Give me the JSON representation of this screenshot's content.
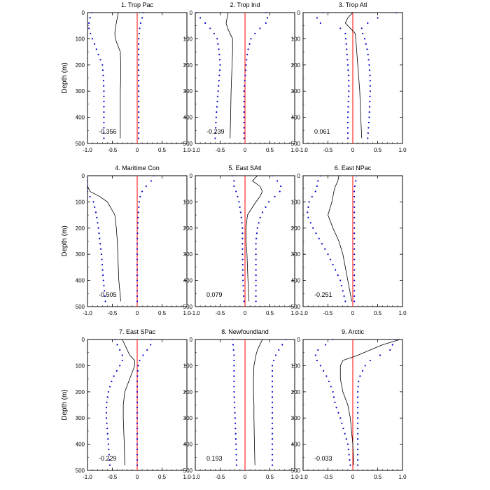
{
  "chart_data": {
    "type": "line",
    "ylabel": "Depth (m)",
    "xlim": [
      -1.0,
      1.0
    ],
    "ylim": [
      0,
      500
    ],
    "y_inverted": true,
    "xticks": [
      "-1.0",
      "-0.5",
      "0",
      "0.5",
      "1.0"
    ],
    "yticks": [
      "0",
      "100",
      "200",
      "300",
      "400",
      "500"
    ],
    "colors": {
      "mean_line": "#000000",
      "bounds_dots": "#0000cc",
      "zero_line": "#ff0000"
    },
    "panels": [
      {
        "title": "1. Trop Pac",
        "value": "-0.356",
        "depth": [
          0,
          20,
          40,
          60,
          80,
          100,
          150,
          200,
          250,
          300,
          400,
          480
        ],
        "line": [
          -0.38,
          -0.4,
          -0.42,
          -0.44,
          -0.45,
          -0.44,
          -0.34,
          -0.33,
          -0.33,
          -0.34,
          -0.34,
          -0.34
        ],
        "lower": [
          -0.92,
          -0.95,
          -0.97,
          -0.97,
          -0.94,
          -0.9,
          -0.8,
          -0.7,
          -0.68,
          -0.67,
          -0.67,
          -0.67
        ],
        "upper": [
          0.12,
          0.1,
          0.07,
          0.05,
          0.04,
          0.03,
          0.03,
          0.03,
          0.03,
          0.03,
          0.03,
          0.03
        ]
      },
      {
        "title": "2. Trop Ind",
        "value": "-0.239",
        "depth": [
          0,
          20,
          40,
          60,
          80,
          100,
          150,
          200,
          250,
          300,
          400,
          480
        ],
        "line": [
          -0.34,
          -0.36,
          -0.38,
          -0.35,
          -0.3,
          -0.25,
          -0.25,
          -0.26,
          -0.27,
          -0.28,
          -0.29,
          -0.3
        ],
        "lower": [
          -0.97,
          -0.9,
          -0.8,
          -0.7,
          -0.62,
          -0.56,
          -0.52,
          -0.5,
          -0.52,
          -0.54,
          -0.58,
          -0.6
        ],
        "upper": [
          0.42,
          0.45,
          0.42,
          0.3,
          0.2,
          0.12,
          0.05,
          0.02,
          0.0,
          -0.02,
          -0.02,
          -0.02
        ]
      },
      {
        "title": "3. Trop Atl",
        "value": "0.061",
        "depth": [
          0,
          20,
          40,
          60,
          80,
          100,
          150,
          200,
          250,
          300,
          400,
          480
        ],
        "line": [
          0.0,
          -0.1,
          -0.15,
          -0.05,
          0.05,
          0.06,
          0.08,
          0.1,
          0.12,
          0.14,
          0.16,
          0.18
        ],
        "lower": [
          -0.6,
          -0.72,
          -0.65,
          -0.25,
          -0.15,
          -0.14,
          -0.12,
          -0.1,
          -0.08,
          -0.08,
          -0.1,
          -0.1
        ],
        "upper": [
          0.88,
          0.5,
          0.3,
          0.18,
          0.2,
          0.24,
          0.3,
          0.33,
          0.35,
          0.35,
          0.33,
          0.3
        ]
      },
      {
        "title": "4. Maritime Con",
        "value": "-0.505",
        "depth": [
          0,
          20,
          40,
          60,
          80,
          100,
          150,
          200,
          250,
          300,
          400,
          480
        ],
        "line": [
          -1.0,
          -1.0,
          -1.0,
          -0.95,
          -0.75,
          -0.6,
          -0.45,
          -0.42,
          -0.4,
          -0.39,
          -0.37,
          -0.33
        ],
        "lower": [
          -1.0,
          -1.0,
          -1.0,
          -1.0,
          -0.95,
          -0.88,
          -0.82,
          -0.78,
          -0.75,
          -0.72,
          -0.68,
          -0.64
        ],
        "upper": [
          0.33,
          0.28,
          0.18,
          0.1,
          0.06,
          0.04,
          0.02,
          0.01,
          0.0,
          0.0,
          0.0,
          0.0
        ]
      },
      {
        "title": "5. East SAtl",
        "value": "0.079",
        "depth": [
          0,
          20,
          40,
          60,
          80,
          100,
          150,
          200,
          250,
          300,
          400,
          480
        ],
        "line": [
          0.25,
          0.15,
          0.3,
          0.35,
          0.3,
          0.22,
          0.05,
          0.02,
          0.02,
          0.04,
          0.06,
          0.08
        ],
        "lower": [
          -0.25,
          -0.22,
          -0.22,
          -0.18,
          -0.15,
          -0.12,
          -0.08,
          -0.05,
          -0.05,
          -0.05,
          -0.04,
          -0.02
        ],
        "upper": [
          0.55,
          0.65,
          0.72,
          0.7,
          0.6,
          0.48,
          0.32,
          0.25,
          0.22,
          0.22,
          0.22,
          0.22
        ]
      },
      {
        "title": "6. East NPac",
        "value": "-0.251",
        "depth": [
          0,
          20,
          40,
          60,
          80,
          100,
          150,
          200,
          250,
          300,
          400,
          480
        ],
        "line": [
          -0.28,
          -0.3,
          -0.35,
          -0.38,
          -0.4,
          -0.42,
          -0.5,
          -0.4,
          -0.28,
          -0.2,
          -0.1,
          -0.02
        ],
        "lower": [
          -0.65,
          -0.7,
          -0.72,
          -0.75,
          -0.82,
          -0.88,
          -0.92,
          -0.8,
          -0.65,
          -0.5,
          -0.25,
          -0.15
        ],
        "upper": [
          0.08,
          0.06,
          0.04,
          0.03,
          0.03,
          0.03,
          0.03,
          0.03,
          0.03,
          0.03,
          0.03,
          0.03
        ]
      },
      {
        "title": "7. East SPac",
        "value": "-0.229",
        "depth": [
          0,
          20,
          40,
          60,
          80,
          100,
          150,
          200,
          250,
          300,
          400,
          480
        ],
        "line": [
          -0.3,
          -0.25,
          -0.2,
          -0.15,
          -0.05,
          -0.05,
          -0.15,
          -0.25,
          -0.28,
          -0.28,
          -0.26,
          -0.25
        ],
        "lower": [
          -0.45,
          -0.4,
          -0.35,
          -0.3,
          -0.3,
          -0.35,
          -0.5,
          -0.58,
          -0.62,
          -0.62,
          -0.58,
          -0.55
        ],
        "upper": [
          0.28,
          0.27,
          0.2,
          0.12,
          0.05,
          0.02,
          0.0,
          0.0,
          0.0,
          0.0,
          0.0,
          0.0
        ]
      },
      {
        "title": "8. Newfoundland",
        "value": "0.193",
        "depth": [
          0,
          20,
          40,
          60,
          80,
          100,
          150,
          200,
          250,
          300,
          400,
          480
        ],
        "line": [
          0.35,
          0.3,
          0.25,
          0.22,
          0.2,
          0.18,
          0.17,
          0.17,
          0.18,
          0.18,
          0.19,
          0.2
        ],
        "lower": [
          -0.25,
          -0.24,
          -0.23,
          -0.22,
          -0.22,
          -0.22,
          -0.22,
          -0.22,
          -0.21,
          -0.2,
          -0.18,
          -0.17
        ],
        "upper": [
          0.82,
          0.75,
          0.68,
          0.62,
          0.58,
          0.55,
          0.55,
          0.55,
          0.55,
          0.55,
          0.55,
          0.55
        ]
      },
      {
        "title": "9. Arctic",
        "value": "-0.033",
        "depth": [
          0,
          20,
          40,
          60,
          80,
          100,
          150,
          200,
          250,
          300,
          400,
          480
        ],
        "line": [
          0.95,
          0.6,
          0.35,
          0.1,
          -0.2,
          -0.25,
          -0.25,
          -0.2,
          -0.1,
          -0.05,
          0.0,
          0.02
        ],
        "lower": [
          -0.4,
          -0.55,
          -0.7,
          -0.75,
          -0.72,
          -0.65,
          -0.5,
          -0.4,
          -0.35,
          -0.25,
          -0.1,
          -0.05
        ],
        "upper": [
          0.85,
          0.8,
          0.75,
          0.55,
          0.35,
          0.25,
          0.12,
          0.1,
          0.1,
          0.1,
          0.1,
          0.1
        ]
      }
    ]
  }
}
